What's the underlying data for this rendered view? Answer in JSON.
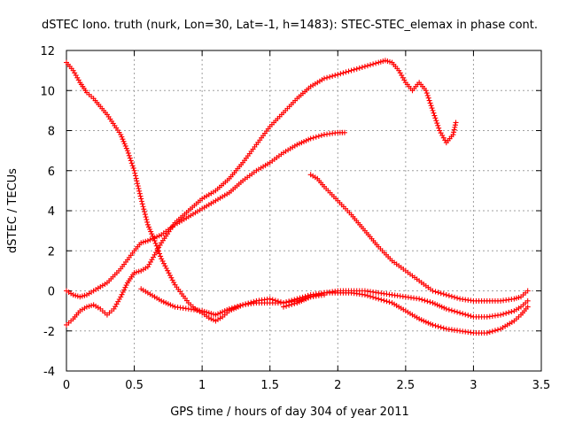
{
  "chart_data": {
    "type": "scatter",
    "title": "dSTEC Iono. truth (nurk, Lon=30, Lat=-1, h=1483): STEC-STEC_elemax in phase cont.",
    "xlabel": "GPS time / hours of day 304 of year 2011",
    "ylabel": "dSTEC  / TECUs",
    "xlim": [
      0,
      3.5
    ],
    "ylim": [
      -4,
      12
    ],
    "xticks": [
      "0",
      "0.5",
      "1",
      "1.5",
      "2",
      "2.5",
      "3",
      "3.5"
    ],
    "yticks": [
      "-4",
      "-2",
      "0",
      "2",
      "4",
      "6",
      "8",
      "10",
      "12"
    ],
    "grid": true,
    "marker": "plus",
    "color": "#ff0000",
    "series": [
      {
        "x": [
          0.0,
          0.05,
          0.1,
          0.15,
          0.2,
          0.3,
          0.4,
          0.45,
          0.5,
          0.55,
          0.6,
          0.65,
          0.7,
          0.8,
          0.9,
          0.95,
          1.0,
          1.05,
          1.1,
          1.15,
          1.2,
          1.3,
          1.4,
          1.5,
          1.6,
          1.7,
          1.8,
          1.9
        ],
        "y": [
          11.4,
          11.0,
          10.4,
          9.9,
          9.6,
          8.8,
          7.8,
          7.0,
          6.0,
          4.6,
          3.3,
          2.5,
          1.6,
          0.3,
          -0.6,
          -0.9,
          -1.1,
          -1.35,
          -1.5,
          -1.3,
          -1.0,
          -0.7,
          -0.5,
          -0.4,
          -0.6,
          -0.5,
          -0.3,
          -0.2
        ]
      },
      {
        "x": [
          0.0,
          0.05,
          0.1,
          0.15,
          0.2,
          0.3,
          0.4,
          0.5,
          0.55,
          0.6,
          0.7,
          0.8,
          0.9,
          1.0,
          1.1,
          1.2,
          1.3,
          1.4,
          1.5,
          1.6,
          1.7,
          1.8,
          1.9,
          2.0,
          2.05
        ],
        "y": [
          0.0,
          -0.2,
          -0.3,
          -0.2,
          0.0,
          0.4,
          1.1,
          2.0,
          2.4,
          2.5,
          2.8,
          3.3,
          3.7,
          4.1,
          4.5,
          4.9,
          5.5,
          6.0,
          6.4,
          6.9,
          7.3,
          7.6,
          7.8,
          7.9,
          7.9
        ]
      },
      {
        "x": [
          0.0,
          0.05,
          0.1,
          0.15,
          0.2,
          0.25,
          0.3,
          0.35,
          0.4,
          0.45,
          0.5,
          0.55,
          0.6,
          0.7,
          0.8,
          0.9,
          1.0,
          1.1,
          1.2,
          1.3,
          1.4,
          1.5,
          1.6,
          1.7,
          1.8,
          1.9,
          2.0,
          2.1,
          2.2,
          2.3,
          2.35,
          2.4,
          2.45,
          2.5,
          2.55,
          2.6,
          2.65,
          2.7,
          2.75,
          2.8,
          2.85,
          2.87
        ],
        "y": [
          -1.7,
          -1.4,
          -1.0,
          -0.8,
          -0.7,
          -0.9,
          -1.2,
          -0.9,
          -0.3,
          0.4,
          0.9,
          1.0,
          1.2,
          2.4,
          3.4,
          4.0,
          4.6,
          5.0,
          5.6,
          6.4,
          7.3,
          8.2,
          8.9,
          9.6,
          10.2,
          10.6,
          10.8,
          11.0,
          11.2,
          11.4,
          11.5,
          11.4,
          11.0,
          10.4,
          10.0,
          10.4,
          10.0,
          9.0,
          8.0,
          7.4,
          7.8,
          8.4
        ]
      },
      {
        "x": [
          0.55,
          0.6,
          0.7,
          0.8,
          0.9,
          1.0,
          1.05,
          1.1,
          1.2,
          1.3,
          1.4,
          1.5,
          1.6,
          1.7,
          1.8,
          1.9,
          2.0,
          2.1,
          2.2,
          2.3,
          2.4,
          2.5,
          2.6,
          2.7,
          2.8,
          2.9,
          3.0,
          3.1,
          3.2,
          3.3,
          3.35,
          3.4
        ],
        "y": [
          0.1,
          -0.1,
          -0.5,
          -0.8,
          -0.9,
          -1.0,
          -1.1,
          -1.2,
          -0.9,
          -0.7,
          -0.6,
          -0.6,
          -0.6,
          -0.4,
          -0.2,
          -0.1,
          0.0,
          0.0,
          0.0,
          -0.1,
          -0.2,
          -0.3,
          -0.4,
          -0.6,
          -0.9,
          -1.1,
          -1.3,
          -1.3,
          -1.2,
          -1.0,
          -0.8,
          -0.5
        ]
      },
      {
        "x": [
          1.8,
          1.85,
          1.9,
          2.0,
          2.1,
          2.2,
          2.3,
          2.4,
          2.5,
          2.6,
          2.7,
          2.8,
          2.9,
          3.0,
          3.1,
          3.2,
          3.3,
          3.35,
          3.4
        ],
        "y": [
          5.8,
          5.6,
          5.2,
          4.5,
          3.8,
          3.0,
          2.2,
          1.5,
          1.0,
          0.5,
          0.0,
          -0.2,
          -0.4,
          -0.5,
          -0.5,
          -0.5,
          -0.4,
          -0.3,
          0.0
        ]
      },
      {
        "x": [
          1.6,
          1.7,
          1.8,
          1.9,
          2.0,
          2.1,
          2.2,
          2.3,
          2.4,
          2.5,
          2.6,
          2.7,
          2.8,
          2.9,
          3.0,
          3.1,
          3.2,
          3.3,
          3.35,
          3.4
        ],
        "y": [
          -0.8,
          -0.6,
          -0.3,
          -0.1,
          -0.1,
          -0.1,
          -0.2,
          -0.4,
          -0.6,
          -1.0,
          -1.4,
          -1.7,
          -1.9,
          -2.0,
          -2.1,
          -2.1,
          -1.9,
          -1.5,
          -1.2,
          -0.8
        ]
      }
    ]
  }
}
